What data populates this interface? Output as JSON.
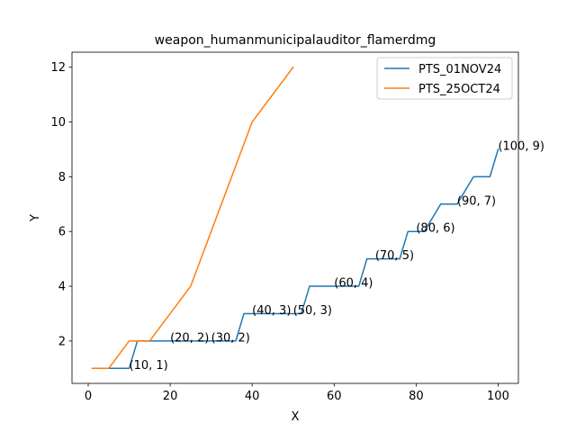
{
  "chart_data": {
    "type": "line",
    "title": "weapon_humanmunicipalauditor_flamerdmg",
    "xlabel": "X",
    "ylabel": "Y",
    "xlim": [
      -3.95,
      104.95
    ],
    "ylim": [
      0.45,
      12.55
    ],
    "xticks": [
      0,
      20,
      40,
      60,
      80,
      100
    ],
    "yticks": [
      2,
      4,
      6,
      8,
      10,
      12
    ],
    "grid": false,
    "legend": "top-right",
    "series": [
      {
        "name": "PTS_01NOV24",
        "color": "#1f77b4",
        "x": [
          1,
          10,
          12,
          36,
          38,
          52,
          54,
          66,
          68,
          76,
          78,
          82,
          86,
          90,
          94,
          98,
          100
        ],
        "y": [
          1,
          1,
          2,
          2,
          3,
          3,
          4,
          4,
          5,
          5,
          6,
          6,
          7,
          7,
          8,
          8,
          9
        ]
      },
      {
        "name": "PTS_25OCT24",
        "color": "#ff7f0e",
        "x": [
          1,
          5,
          10,
          15,
          25,
          40,
          50
        ],
        "y": [
          1,
          1,
          2,
          2,
          4,
          10,
          12
        ]
      }
    ],
    "annotations": [
      {
        "text": "(10, 1)",
        "x": 10,
        "y": 1
      },
      {
        "text": "(20, 2)",
        "x": 20,
        "y": 2
      },
      {
        "text": "(30, 2)",
        "x": 30,
        "y": 2
      },
      {
        "text": "(40, 3)",
        "x": 40,
        "y": 3
      },
      {
        "text": "(50, 3)",
        "x": 50,
        "y": 3
      },
      {
        "text": "(60, 4)",
        "x": 60,
        "y": 4
      },
      {
        "text": "(70, 5)",
        "x": 70,
        "y": 5
      },
      {
        "text": "(80, 6)",
        "x": 80,
        "y": 6
      },
      {
        "text": "(90, 7)",
        "x": 90,
        "y": 7
      },
      {
        "text": "(100, 9)",
        "x": 100,
        "y": 9
      }
    ]
  }
}
